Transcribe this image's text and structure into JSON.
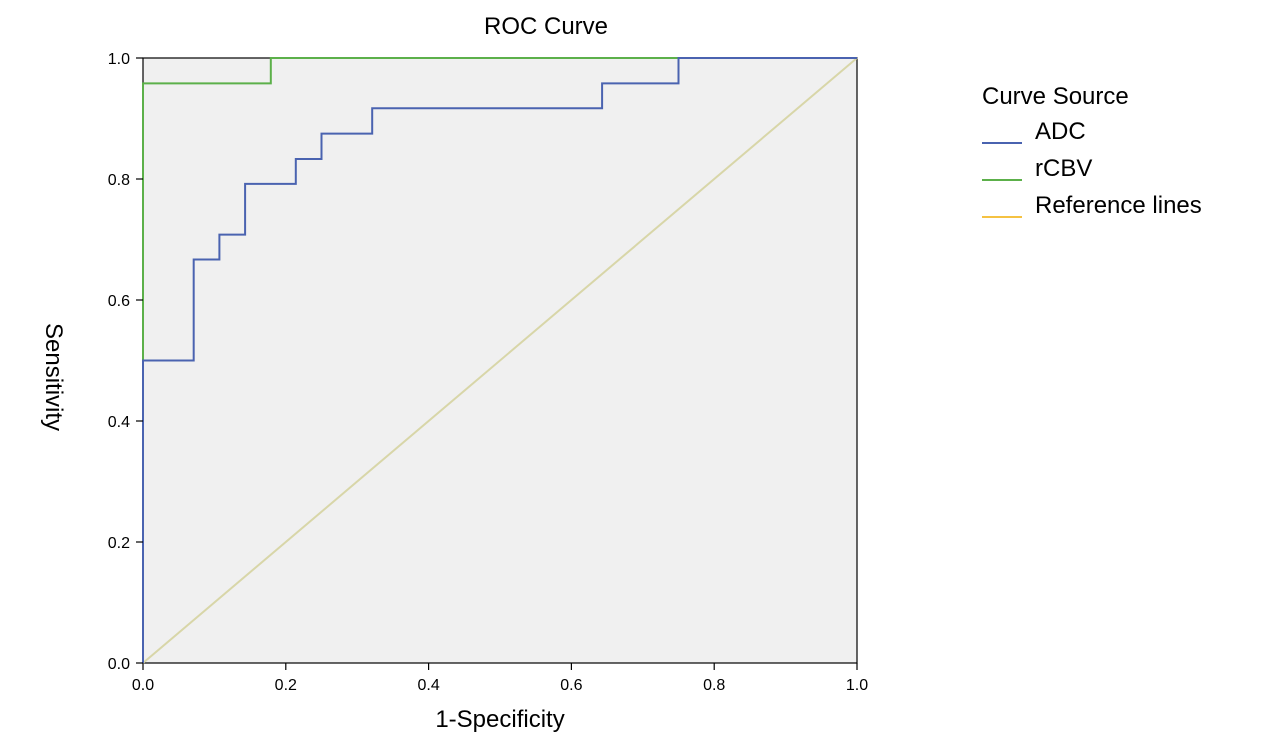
{
  "chart_data": {
    "type": "line",
    "title": "ROC Curve",
    "xlabel": "1-Specificity",
    "ylabel": "Sensitivity",
    "xlim": [
      0.0,
      1.0
    ],
    "ylim": [
      0.0,
      1.0
    ],
    "xticks": [
      "0.0",
      "0.2",
      "0.4",
      "0.6",
      "0.8",
      "1.0"
    ],
    "yticks": [
      "0.0",
      "0.2",
      "0.4",
      "0.6",
      "0.8",
      "1.0"
    ],
    "grid": false,
    "legend_title": "Curve Source",
    "legend_position": "right",
    "series": [
      {
        "name": "ADC",
        "color": "#4a63b0",
        "points": [
          [
            0,
            0
          ],
          [
            0,
            0.5
          ],
          [
            0.071,
            0.5
          ],
          [
            0.071,
            0.667
          ],
          [
            0.107,
            0.667
          ],
          [
            0.107,
            0.708
          ],
          [
            0.143,
            0.708
          ],
          [
            0.143,
            0.792
          ],
          [
            0.214,
            0.792
          ],
          [
            0.214,
            0.833
          ],
          [
            0.25,
            0.833
          ],
          [
            0.25,
            0.875
          ],
          [
            0.321,
            0.875
          ],
          [
            0.321,
            0.917
          ],
          [
            0.643,
            0.917
          ],
          [
            0.643,
            0.958
          ],
          [
            0.75,
            0.958
          ],
          [
            0.75,
            1.0
          ],
          [
            1.0,
            1.0
          ]
        ]
      },
      {
        "name": "rCBV",
        "color": "#5cb04a",
        "points": [
          [
            0,
            0
          ],
          [
            0,
            0.958
          ],
          [
            0.179,
            0.958
          ],
          [
            0.179,
            1.0
          ],
          [
            1.0,
            1.0
          ]
        ]
      },
      {
        "name": "Reference lines",
        "color": "#f5c242",
        "points": [
          [
            0,
            0
          ],
          [
            1,
            1
          ]
        ]
      }
    ],
    "reference_line_plot_color": "#d8d6a8",
    "plot_background": "#f0f0f0"
  }
}
